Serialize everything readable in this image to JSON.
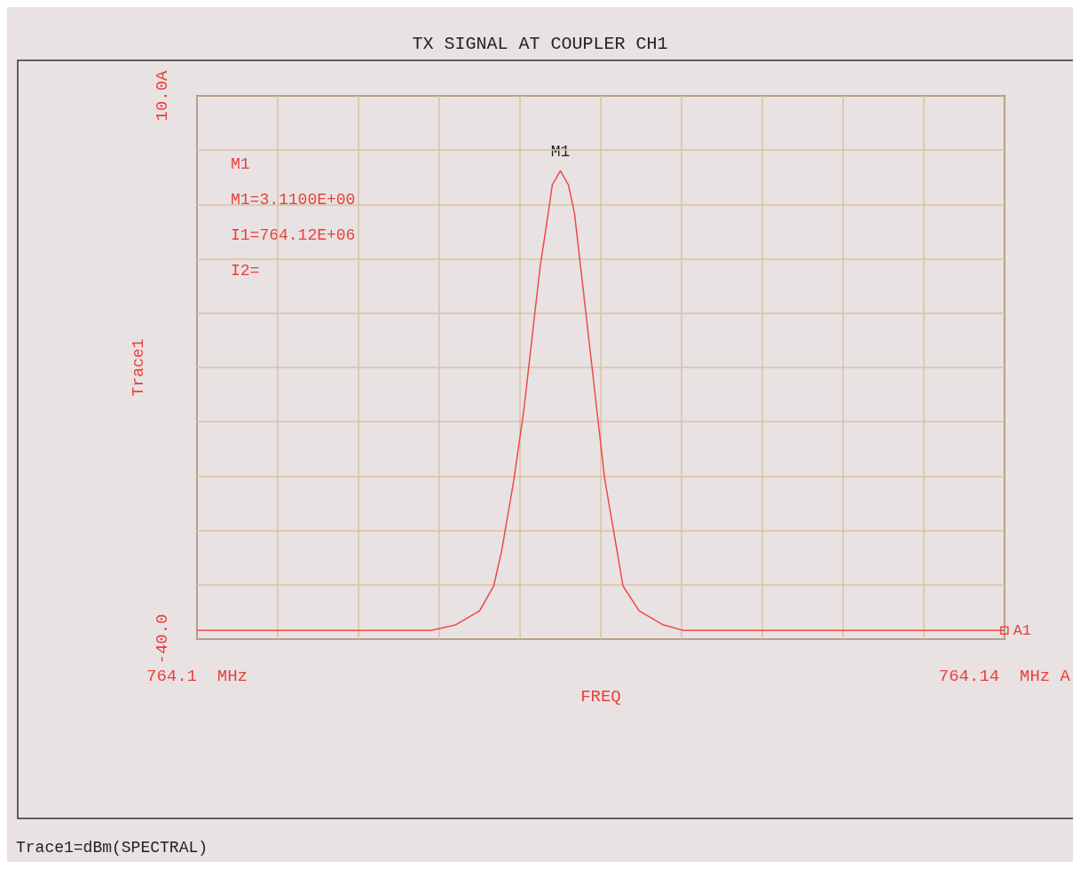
{
  "chart_data": {
    "type": "line",
    "title": "TX SIGNAL AT COUPLER CH1",
    "xlabel": "FREQ",
    "ylabel": "Trace1",
    "x": [
      764.1,
      764.1116,
      764.1128,
      764.114,
      764.1147,
      764.1151,
      764.1157,
      764.1162,
      764.1166,
      764.117,
      764.1174,
      764.1176,
      764.118,
      764.1184,
      764.1187,
      764.119,
      764.1194,
      764.1198,
      764.1202,
      764.1208,
      764.1211,
      764.1219,
      764.1231,
      764.1241,
      764.14
    ],
    "series": [
      {
        "color": "#f04848",
        "values": [
          -39.2,
          -39.2,
          -38.7,
          -37.4,
          -35.1,
          -31.8,
          -25.3,
          -18.8,
          -12.2,
          -5.7,
          -0.8,
          1.8,
          3.1,
          1.8,
          -0.8,
          -5.7,
          -12.2,
          -18.8,
          -25.3,
          -31.8,
          -35.1,
          -37.4,
          -38.7,
          -39.2,
          -39.2
        ]
      }
    ],
    "xlim": [
      764.1,
      764.14
    ],
    "xticks": [
      {
        "value": 764.1,
        "label": "764.1  MHz"
      },
      {
        "value": 764.104,
        "label": null
      },
      {
        "value": 764.108,
        "label": null
      },
      {
        "value": 764.112,
        "label": null
      },
      {
        "value": 764.116,
        "label": null
      },
      {
        "value": 764.12,
        "label": null
      },
      {
        "value": 764.124,
        "label": null
      },
      {
        "value": 764.128,
        "label": null
      },
      {
        "value": 764.132,
        "label": null
      },
      {
        "value": 764.136,
        "label": null
      },
      {
        "value": 764.14,
        "label": "764.14  MHz A"
      }
    ],
    "ylim": [
      -40,
      10
    ],
    "yticks": [
      {
        "value": -40,
        "label": "-40.0"
      },
      {
        "value": -35,
        "label": null
      },
      {
        "value": -30,
        "label": null
      },
      {
        "value": -25,
        "label": null
      },
      {
        "value": -20,
        "label": null
      },
      {
        "value": -15,
        "label": null
      },
      {
        "value": -10,
        "label": null
      },
      {
        "value": -5,
        "label": null
      },
      {
        "value": 0,
        "label": null
      },
      {
        "value": 5,
        "label": null
      },
      {
        "value": 10,
        "label": "10.0A"
      }
    ],
    "grid": true,
    "marker": "none",
    "line_style": "solid",
    "annotations": [
      {
        "text": "M1",
        "x": 764.118,
        "y": 3.1
      },
      {
        "text": "A1",
        "x": 764.14,
        "y": -39.2
      },
      "M1",
      "M1=3.1100E+00",
      "I1=764.12E+06",
      "I2=",
      "Trace1=dBm(SPECTRAL)"
    ]
  }
}
